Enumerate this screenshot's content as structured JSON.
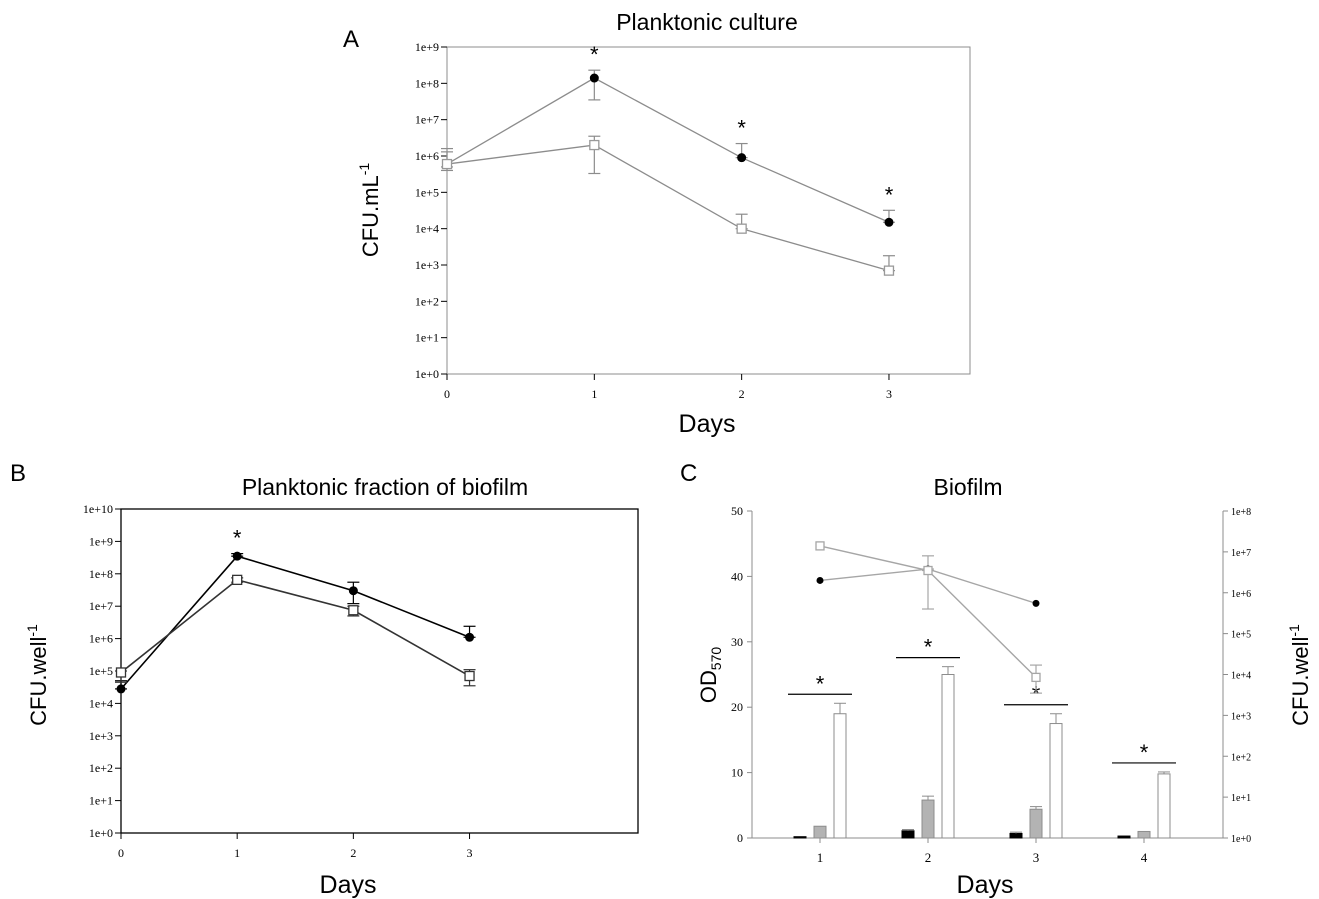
{
  "chart_data": [
    {
      "panel_letter": "A",
      "type": "line",
      "title": "Planktonic culture",
      "xlabel": "Days",
      "ylabel": "CFU.mL",
      "ylabel_sup": "-1",
      "x": [
        0,
        1,
        2,
        3
      ],
      "xticks": [
        "0",
        "1",
        "2",
        "3"
      ],
      "xlim": [
        0,
        3.55
      ],
      "yscale": "log",
      "ylim": [
        1,
        1000000000.0
      ],
      "yticks": [
        "1e+0",
        "1e+1",
        "1e+2",
        "1e+3",
        "1e+4",
        "1e+5",
        "1e+6",
        "1e+7",
        "1e+8",
        "1e+9"
      ],
      "series": [
        {
          "marker": "filled-circle",
          "color": "#000000",
          "values": [
            600000,
            140000000,
            900000,
            15000
          ],
          "err_high": [
            1600000,
            230000000,
            2200000,
            32000
          ],
          "err_low": [
            400000,
            35000000,
            900000,
            15000
          ]
        },
        {
          "marker": "open-square",
          "color": "#999999",
          "values": [
            600000,
            2000000,
            10000,
            700
          ],
          "err_high": [
            1300000,
            3500000,
            25000,
            1800
          ],
          "err_low": [
            500000,
            330000,
            10000,
            700
          ]
        }
      ],
      "annotations": [
        {
          "text": "*",
          "x": 1
        },
        {
          "text": "*",
          "x": 2
        },
        {
          "text": "*",
          "x": 3
        }
      ]
    },
    {
      "panel_letter": "B",
      "type": "line",
      "title": "Planktonic fraction of biofilm",
      "xlabel": "Days",
      "ylabel": "CFU.well",
      "ylabel_sup": "-1",
      "x": [
        0,
        1,
        2,
        3
      ],
      "xticks": [
        "0",
        "1",
        "2",
        "3"
      ],
      "xlim": [
        0,
        4.45
      ],
      "yscale": "log",
      "ylim": [
        1,
        10000000000.0
      ],
      "yticks": [
        "1e+0",
        "1e+1",
        "1e+2",
        "1e+3",
        "1e+4",
        "1e+5",
        "1e+6",
        "1e+7",
        "1e+8",
        "1e+9",
        "1e+10"
      ],
      "series": [
        {
          "marker": "filled-circle",
          "color": "#000000",
          "values": [
            28000,
            350000000,
            30000000,
            1100000
          ],
          "err_high": [
            50000,
            420000000,
            55000000,
            2400000
          ],
          "err_low": [
            28000,
            350000000,
            12000000,
            1100000
          ]
        },
        {
          "marker": "open-square",
          "color": "#333333",
          "values": [
            90000,
            65000000,
            7500000,
            70000
          ],
          "err_high": [
            100000,
            75000000,
            10000000,
            110000
          ],
          "err_low": [
            45000,
            55000000,
            5000000,
            35000
          ]
        }
      ],
      "annotations": [
        {
          "text": "*",
          "x": 1
        }
      ]
    },
    {
      "panel_letter": "C",
      "type": "bar",
      "title": "Biofilm",
      "xlabel": "Days",
      "ylabel": "OD",
      "ylabel_sub": "570",
      "y2label": "CFU.well",
      "y2label_sup": "-1",
      "categories": [
        "1",
        "2",
        "3",
        "4"
      ],
      "ylim": [
        0,
        50
      ],
      "yticks": [
        "0",
        "10",
        "20",
        "30",
        "40",
        "50"
      ],
      "y2scale": "log",
      "y2lim": [
        1,
        100000000.0
      ],
      "y2ticks": [
        "1e+0",
        "1e+1",
        "1e+2",
        "1e+3",
        "1e+4",
        "1e+5",
        "1e+6",
        "1e+7",
        "1e+8"
      ],
      "bar_series": [
        {
          "color": "#000000",
          "values": [
            0.2,
            1.1,
            0.7,
            0.3
          ],
          "err": [
            0,
            0.2,
            0.2,
            0
          ]
        },
        {
          "color": "#b3b3b3",
          "values": [
            1.8,
            5.8,
            4.4,
            1.0
          ],
          "err": [
            0,
            0.6,
            0.4,
            0
          ]
        },
        {
          "color": "#ffffff",
          "values": [
            19.0,
            25.0,
            17.5,
            9.8
          ],
          "err": [
            1.6,
            1.2,
            1.5,
            0.3
          ]
        }
      ],
      "line_series": [
        {
          "marker": "filled-circle",
          "color": "#000000",
          "line_color": "#a6a6a6",
          "values": [
            2000000,
            3800000,
            550000
          ],
          "err_high": [
            2000000,
            8000000,
            550000
          ],
          "err_low": [
            2000000,
            3800000,
            550000
          ]
        },
        {
          "marker": "open-square",
          "color": "#a6a6a6",
          "line_color": "#a6a6a6",
          "values": [
            14000000,
            3500000,
            8500
          ],
          "err_high": [
            14000000,
            3500000,
            17000
          ],
          "err_low": [
            14000000,
            400000,
            3500
          ]
        }
      ],
      "annotations": [
        {
          "text": "*",
          "category": 1
        },
        {
          "text": "*",
          "category": 2
        },
        {
          "text": "*",
          "category": 3
        },
        {
          "text": "*",
          "category": 4
        }
      ]
    }
  ]
}
